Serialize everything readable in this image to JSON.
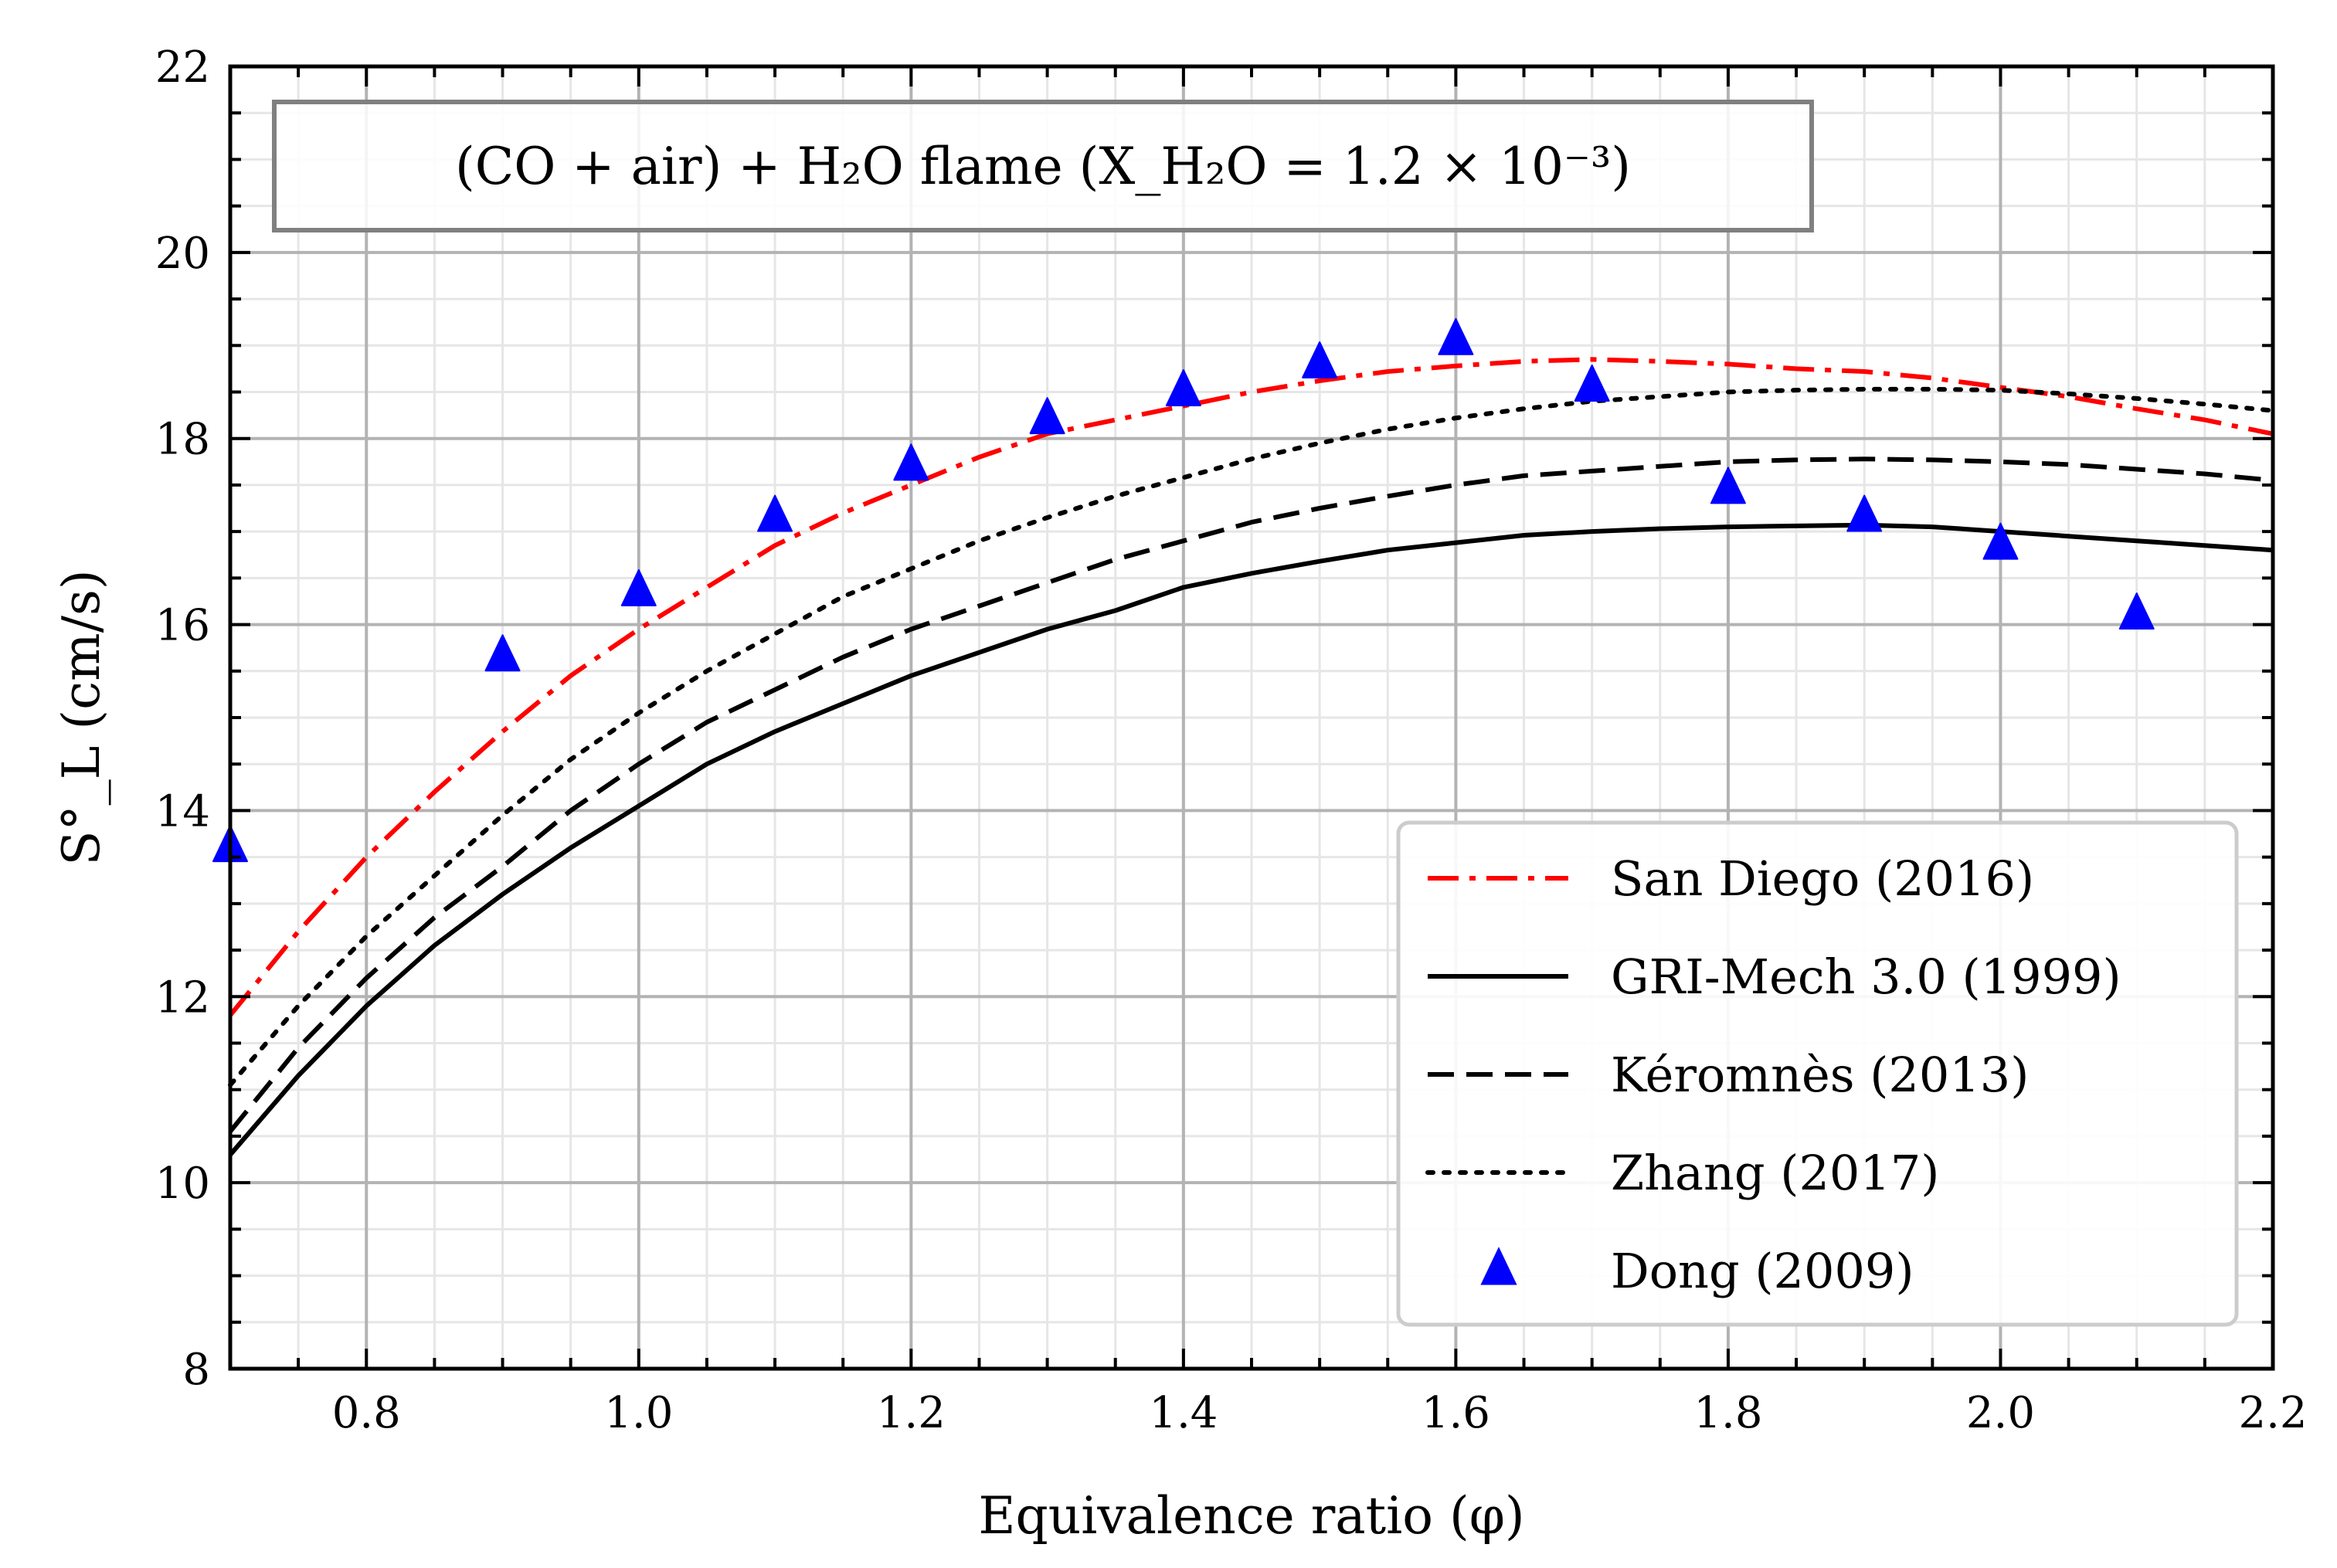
{
  "chart_data": {
    "type": "line",
    "title": "",
    "annotation": "(CO + air) + H₂O flame (X_H₂O = 1.2 × 10⁻³)",
    "xlabel": "Equivalence ratio (φ)",
    "ylabel": "S°_L (cm/s)",
    "xlim": [
      0.7,
      2.2
    ],
    "ylim": [
      8,
      22
    ],
    "xticks": [
      "0.8",
      "1.0",
      "1.2",
      "1.4",
      "1.6",
      "1.8",
      "2.0",
      "2.2"
    ],
    "yticks": [
      "8",
      "10",
      "12",
      "14",
      "16",
      "18",
      "20",
      "22"
    ],
    "grid": true,
    "legend_position": "lower-right",
    "series": [
      {
        "name": "San Diego (2016)",
        "style": "dashdot",
        "color": "#ff0000",
        "x": [
          0.7,
          0.75,
          0.8,
          0.85,
          0.9,
          0.95,
          1.0,
          1.05,
          1.1,
          1.15,
          1.2,
          1.25,
          1.3,
          1.35,
          1.4,
          1.45,
          1.5,
          1.55,
          1.6,
          1.65,
          1.7,
          1.75,
          1.8,
          1.85,
          1.9,
          1.95,
          2.0,
          2.05,
          2.1,
          2.15,
          2.2
        ],
        "y": [
          11.8,
          12.7,
          13.5,
          14.2,
          14.85,
          15.45,
          15.95,
          16.4,
          16.85,
          17.2,
          17.5,
          17.8,
          18.05,
          18.2,
          18.35,
          18.5,
          18.62,
          18.72,
          18.78,
          18.83,
          18.85,
          18.83,
          18.8,
          18.75,
          18.72,
          18.65,
          18.55,
          18.45,
          18.32,
          18.2,
          18.05
        ]
      },
      {
        "name": "GRI-Mech 3.0 (1999)",
        "style": "solid",
        "color": "#000000",
        "x": [
          0.7,
          0.75,
          0.8,
          0.85,
          0.9,
          0.95,
          1.0,
          1.05,
          1.1,
          1.15,
          1.2,
          1.25,
          1.3,
          1.35,
          1.4,
          1.45,
          1.5,
          1.55,
          1.6,
          1.65,
          1.7,
          1.75,
          1.8,
          1.85,
          1.9,
          1.95,
          2.0,
          2.05,
          2.1,
          2.15,
          2.2
        ],
        "y": [
          10.3,
          11.15,
          11.9,
          12.55,
          13.1,
          13.6,
          14.05,
          14.5,
          14.85,
          15.15,
          15.45,
          15.7,
          15.95,
          16.15,
          16.4,
          16.55,
          16.68,
          16.8,
          16.88,
          16.96,
          17.0,
          17.03,
          17.05,
          17.06,
          17.07,
          17.05,
          17.0,
          16.95,
          16.9,
          16.85,
          16.8
        ]
      },
      {
        "name": "Kéromnès (2013)",
        "style": "dashed",
        "color": "#000000",
        "x": [
          0.7,
          0.75,
          0.8,
          0.85,
          0.9,
          0.95,
          1.0,
          1.05,
          1.1,
          1.15,
          1.2,
          1.25,
          1.3,
          1.35,
          1.4,
          1.45,
          1.5,
          1.55,
          1.6,
          1.65,
          1.7,
          1.75,
          1.8,
          1.85,
          1.9,
          1.95,
          2.0,
          2.05,
          2.1,
          2.15,
          2.2
        ],
        "y": [
          10.55,
          11.45,
          12.2,
          12.85,
          13.4,
          14.0,
          14.5,
          14.95,
          15.3,
          15.65,
          15.95,
          16.2,
          16.45,
          16.7,
          16.9,
          17.1,
          17.25,
          17.38,
          17.5,
          17.6,
          17.65,
          17.7,
          17.75,
          17.77,
          17.78,
          17.77,
          17.75,
          17.72,
          17.67,
          17.62,
          17.55
        ]
      },
      {
        "name": "Zhang (2017)",
        "style": "dotted",
        "color": "#000000",
        "x": [
          0.7,
          0.75,
          0.8,
          0.85,
          0.9,
          0.95,
          1.0,
          1.05,
          1.1,
          1.15,
          1.2,
          1.25,
          1.3,
          1.35,
          1.4,
          1.45,
          1.5,
          1.55,
          1.6,
          1.65,
          1.7,
          1.75,
          1.8,
          1.85,
          1.9,
          1.95,
          2.0,
          2.05,
          2.1,
          2.15,
          2.2
        ],
        "y": [
          11.05,
          11.9,
          12.65,
          13.3,
          13.95,
          14.55,
          15.05,
          15.5,
          15.9,
          16.3,
          16.6,
          16.9,
          17.15,
          17.38,
          17.58,
          17.78,
          17.95,
          18.1,
          18.22,
          18.32,
          18.4,
          18.45,
          18.5,
          18.52,
          18.53,
          18.53,
          18.52,
          18.48,
          18.43,
          18.37,
          18.3
        ]
      },
      {
        "name": "Dong (2009)",
        "style": "triangle-markers",
        "color": "#0000ff",
        "x": [
          0.7,
          0.9,
          1.0,
          1.1,
          1.2,
          1.3,
          1.4,
          1.5,
          1.6,
          1.7,
          1.8,
          1.9,
          2.0,
          2.1
        ],
        "y": [
          13.6,
          15.65,
          16.35,
          17.15,
          17.7,
          18.2,
          18.5,
          18.8,
          19.05,
          18.55,
          17.45,
          17.15,
          16.85,
          16.1
        ]
      }
    ]
  }
}
